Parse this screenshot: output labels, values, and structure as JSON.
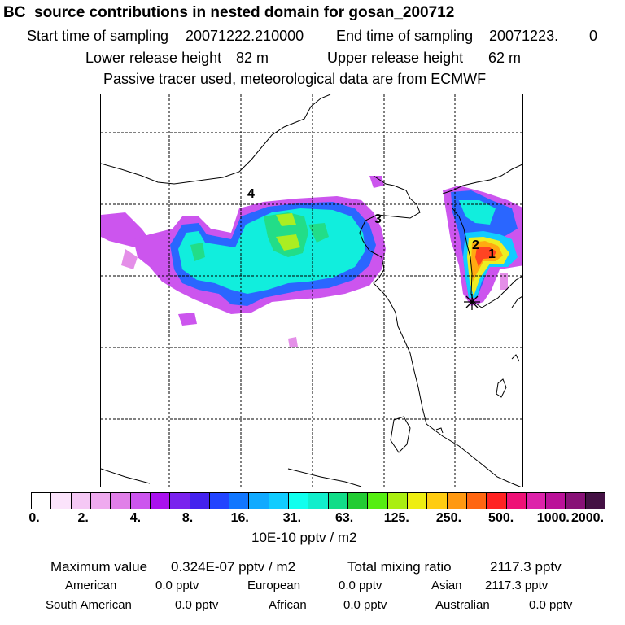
{
  "header": {
    "title": "BC  source contributions in nested domain for gosan_200712",
    "start_label": "Start time of sampling",
    "start_value": "20071222.210000",
    "end_label": "End time of sampling",
    "end_value": "20071223.",
    "end_value2": "0",
    "lower_label": "Lower release height",
    "lower_value": "82 m",
    "upper_label": "Upper release height",
    "upper_value": "62 m",
    "note": "Passive tracer used, meteorological data are from ECMWF"
  },
  "map": {
    "source_labels": [
      "1",
      "2",
      "3",
      "4"
    ],
    "receptor": "gosan-receptor-star",
    "gridlines": "dashed"
  },
  "colorbar": {
    "colors": [
      "#ffffff",
      "#fbe3fb",
      "#f5c8f5",
      "#efaaef",
      "#e07fe8",
      "#cc55ee",
      "#aa11ee",
      "#7a22ee",
      "#4422ee",
      "#2244ff",
      "#1177ff",
      "#11aaff",
      "#11ccff",
      "#11ffee",
      "#11eecc",
      "#11dd88",
      "#22cc33",
      "#55ee11",
      "#aaee11",
      "#eeee11",
      "#ffcc11",
      "#ff9911",
      "#ff6611",
      "#ff2222",
      "#ee1177",
      "#dd22aa",
      "#bb1199",
      "#881177",
      "#441144"
    ],
    "ticks": [
      "0.",
      "2.",
      "4.",
      "8.",
      "16.",
      "31.",
      "63.",
      "125.",
      "250.",
      "500.",
      "1000.",
      "2000."
    ],
    "units": "10E-10 pptv / m2"
  },
  "stats": {
    "max_label": "Maximum value",
    "max_value": "0.324E-07 pptv / m2",
    "total_label": "Total mixing ratio",
    "total_value": "2117.3 pptv"
  },
  "sources": [
    {
      "name": "American",
      "value": "0.0 pptv"
    },
    {
      "name": "European",
      "value": "0.0 pptv"
    },
    {
      "name": "Asian",
      "value": "2117.3 pptv"
    },
    {
      "name": "South American",
      "value": "0.0 pptv"
    },
    {
      "name": "African",
      "value": "0.0 pptv"
    },
    {
      "name": "Australian",
      "value": "0.0 pptv"
    }
  ]
}
